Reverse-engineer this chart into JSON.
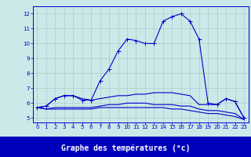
{
  "xlabel": "Graphe des températures (°c)",
  "bg_color": "#cce8e8",
  "label_bar_color": "#0000bb",
  "label_text_color": "#ffffff",
  "line_color": "#0000cc",
  "tick_color": "#0000cc",
  "grid_color": "#aacccc",
  "line1": {
    "x": [
      0,
      1,
      2,
      3,
      4,
      5,
      6,
      7,
      8,
      9,
      10,
      11,
      12,
      13,
      14,
      15,
      16,
      17,
      18,
      19,
      20,
      21,
      22,
      23
    ],
    "y": [
      5.7,
      5.8,
      6.3,
      6.5,
      6.5,
      6.2,
      6.2,
      7.5,
      8.3,
      9.5,
      10.3,
      10.2,
      10.0,
      10.0,
      11.5,
      11.8,
      12.0,
      11.5,
      10.3,
      6.0,
      5.9,
      6.3,
      6.1,
      5.0
    ]
  },
  "line2": {
    "x": [
      0,
      1,
      2,
      3,
      4,
      5,
      6,
      7,
      8,
      9,
      10,
      11,
      12,
      13,
      14,
      15,
      16,
      17,
      18,
      19,
      20,
      21,
      22,
      23
    ],
    "y": [
      5.7,
      5.8,
      6.3,
      6.5,
      6.5,
      6.3,
      6.2,
      6.3,
      6.4,
      6.5,
      6.5,
      6.6,
      6.6,
      6.7,
      6.7,
      6.7,
      6.6,
      6.5,
      5.9,
      5.9,
      5.9,
      6.3,
      6.1,
      5.0
    ]
  },
  "line3": {
    "x": [
      0,
      1,
      2,
      3,
      4,
      5,
      6,
      7,
      8,
      9,
      10,
      11,
      12,
      13,
      14,
      15,
      16,
      17,
      18,
      19,
      20,
      21,
      22,
      23
    ],
    "y": [
      5.7,
      5.6,
      5.7,
      5.7,
      5.7,
      5.7,
      5.7,
      5.8,
      5.9,
      5.9,
      6.0,
      6.0,
      6.0,
      5.9,
      5.9,
      5.9,
      5.8,
      5.8,
      5.6,
      5.5,
      5.5,
      5.4,
      5.3,
      4.9
    ]
  },
  "line4": {
    "x": [
      0,
      1,
      2,
      3,
      4,
      5,
      6,
      7,
      8,
      9,
      10,
      11,
      12,
      13,
      14,
      15,
      16,
      17,
      18,
      19,
      20,
      21,
      22,
      23
    ],
    "y": [
      5.7,
      5.6,
      5.6,
      5.6,
      5.6,
      5.6,
      5.6,
      5.7,
      5.7,
      5.7,
      5.7,
      5.7,
      5.7,
      5.7,
      5.7,
      5.6,
      5.6,
      5.5,
      5.4,
      5.3,
      5.3,
      5.2,
      5.1,
      4.9
    ]
  },
  "xlim": [
    -0.5,
    23.5
  ],
  "ylim": [
    4.7,
    12.5
  ],
  "xticks": [
    0,
    1,
    2,
    3,
    4,
    5,
    6,
    7,
    8,
    9,
    10,
    11,
    12,
    13,
    14,
    15,
    16,
    17,
    18,
    19,
    20,
    21,
    22,
    23
  ],
  "yticks": [
    5,
    6,
    7,
    8,
    9,
    10,
    11,
    12
  ],
  "xlabel_fontsize": 7.0,
  "tick_fontsize": 5.0
}
